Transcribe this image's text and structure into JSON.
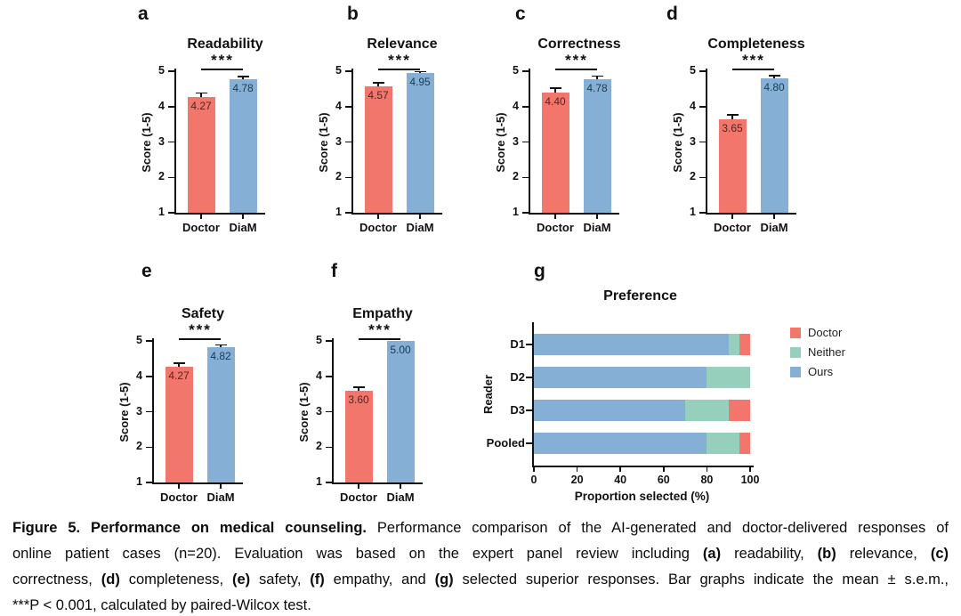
{
  "chart_data": [
    {
      "id": "a",
      "letter": "a",
      "type": "bar",
      "title": "Readability",
      "ylabel": "Score (1-5)",
      "ylim": [
        1,
        5
      ],
      "yticks": [
        1,
        2,
        3,
        4,
        5
      ],
      "categories": [
        "Doctor",
        "DiaM"
      ],
      "values": [
        4.27,
        4.78
      ],
      "value_labels": [
        "4.27",
        "4.78"
      ],
      "errors": [
        0.1,
        0.05
      ],
      "significance": "***",
      "bar_colors": [
        "#F3766C",
        "#85AFD4"
      ],
      "value_label_colors": [
        "#53261f",
        "#1d3a57"
      ]
    },
    {
      "id": "b",
      "letter": "b",
      "type": "bar",
      "title": "Relevance",
      "ylabel": "Score (1-5)",
      "ylim": [
        1,
        5
      ],
      "yticks": [
        1,
        2,
        3,
        4,
        5
      ],
      "categories": [
        "Doctor",
        "DiaM"
      ],
      "values": [
        4.57,
        4.95
      ],
      "value_labels": [
        "4.57",
        "4.95"
      ],
      "errors": [
        0.08,
        0.02
      ],
      "significance": "***",
      "bar_colors": [
        "#F3766C",
        "#85AFD4"
      ],
      "value_label_colors": [
        "#53261f",
        "#1d3a57"
      ]
    },
    {
      "id": "c",
      "letter": "c",
      "type": "bar",
      "title": "Correctness",
      "ylabel": "Score (1-5)",
      "ylim": [
        1,
        5
      ],
      "yticks": [
        1,
        2,
        3,
        4,
        5
      ],
      "categories": [
        "Doctor",
        "DiaM"
      ],
      "values": [
        4.4,
        4.78
      ],
      "value_labels": [
        "4.40",
        "4.78"
      ],
      "errors": [
        0.1,
        0.06
      ],
      "significance": "***",
      "bar_colors": [
        "#F3766C",
        "#85AFD4"
      ],
      "value_label_colors": [
        "#53261f",
        "#1d3a57"
      ]
    },
    {
      "id": "d",
      "letter": "d",
      "type": "bar",
      "title": "Completeness",
      "ylabel": "Score (1-5)",
      "ylim": [
        1,
        5
      ],
      "yticks": [
        1,
        2,
        3,
        4,
        5
      ],
      "categories": [
        "Doctor",
        "DiaM"
      ],
      "values": [
        3.65,
        4.8
      ],
      "value_labels": [
        "3.65",
        "4.80"
      ],
      "errors": [
        0.1,
        0.05
      ],
      "significance": "***",
      "bar_colors": [
        "#F3766C",
        "#85AFD4"
      ],
      "value_label_colors": [
        "#53261f",
        "#1d3a57"
      ]
    },
    {
      "id": "e",
      "letter": "e",
      "type": "bar",
      "title": "Safety",
      "ylabel": "Score (1-5)",
      "ylim": [
        1,
        5
      ],
      "yticks": [
        1,
        2,
        3,
        4,
        5
      ],
      "categories": [
        "Doctor",
        "DiaM"
      ],
      "values": [
        4.27,
        4.82
      ],
      "value_labels": [
        "4.27",
        "4.82"
      ],
      "errors": [
        0.08,
        0.05
      ],
      "significance": "***",
      "bar_colors": [
        "#F3766C",
        "#85AFD4"
      ],
      "value_label_colors": [
        "#53261f",
        "#1d3a57"
      ]
    },
    {
      "id": "f",
      "letter": "f",
      "type": "bar",
      "title": "Empathy",
      "ylabel": "Score (1-5)",
      "ylim": [
        1,
        5
      ],
      "yticks": [
        1,
        2,
        3,
        4,
        5
      ],
      "categories": [
        "Doctor",
        "DiaM"
      ],
      "values": [
        3.6,
        5.0
      ],
      "value_labels": [
        "3.60",
        "5.00"
      ],
      "errors": [
        0.07,
        0
      ],
      "significance": "***",
      "bar_colors": [
        "#F3766C",
        "#85AFD4"
      ],
      "value_label_colors": [
        "#53261f",
        "#1d3a57"
      ]
    },
    {
      "id": "g",
      "letter": "g",
      "type": "stacked-barh",
      "title": "Preference",
      "xlabel": "Proportion selected (%)",
      "ylabel": "Reader",
      "xlim": [
        0,
        100
      ],
      "xticks": [
        0,
        20,
        40,
        60,
        80,
        100
      ],
      "categories": [
        "D1",
        "D2",
        "D3",
        "Pooled"
      ],
      "series": [
        {
          "name": "Doctor",
          "color": "#F3766C",
          "values": [
            5,
            0,
            10,
            5
          ]
        },
        {
          "name": "Neither",
          "color": "#96CFBC",
          "values": [
            5,
            20,
            20,
            15
          ]
        },
        {
          "name": "Ours",
          "color": "#85AFD4",
          "values": [
            90,
            80,
            70,
            80
          ]
        }
      ],
      "stack_order": [
        "Ours",
        "Neither",
        "Doctor"
      ],
      "legend": {
        "position": "right",
        "entries": [
          "Doctor",
          "Neither",
          "Ours"
        ]
      }
    }
  ],
  "caption": {
    "lines": [
      [
        {
          "t": "Figure 5. Performance on medical counseling.",
          "b": true
        },
        {
          "t": " Performance comparison of the AI-generated and doctor-delivered responses of",
          "b": false
        }
      ],
      [
        {
          "t": "online patient cases (n=20). Evaluation was based on the expert panel review including ",
          "b": false
        },
        {
          "t": "(a)",
          "b": true
        },
        {
          "t": " readability, ",
          "b": false
        },
        {
          "t": "(b)",
          "b": true
        },
        {
          "t": " relevance, ",
          "b": false
        },
        {
          "t": "(c)",
          "b": true
        }
      ],
      [
        {
          "t": "correctness, ",
          "b": false
        },
        {
          "t": "(d)",
          "b": true
        },
        {
          "t": " completeness, ",
          "b": false
        },
        {
          "t": "(e)",
          "b": true
        },
        {
          "t": " safety, ",
          "b": false
        },
        {
          "t": "(f)",
          "b": true
        },
        {
          "t": " empathy, and ",
          "b": false
        },
        {
          "t": "(g)",
          "b": true
        },
        {
          "t": " selected superior responses. Bar graphs indicate the mean ± s.e.m.,",
          "b": false
        }
      ],
      [
        {
          "t": "***P < 0.001, calculated by paired-Wilcox test.",
          "b": false
        }
      ]
    ]
  }
}
